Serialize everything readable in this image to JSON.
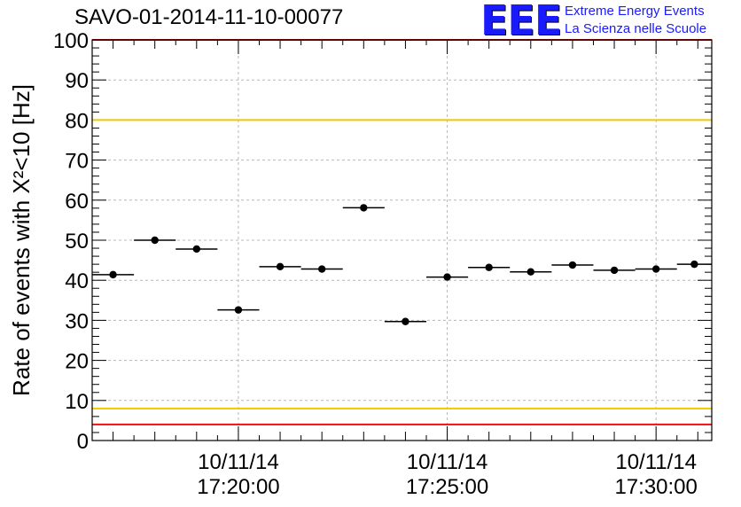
{
  "header": {
    "title": "SAVO-01-2014-11-10-00077",
    "logo_mark": "EEE",
    "logo_line1": "Extreme Energy Events",
    "logo_line2": "La Scienza nelle Scuole"
  },
  "chart_data": {
    "type": "scatter",
    "title": "SAVO-01-2014-11-10-00077",
    "ylabel": "Rate of events with X²<10 [Hz]",
    "xlabel": "",
    "ylim": [
      0,
      100
    ],
    "yticks": [
      0,
      10,
      20,
      30,
      40,
      50,
      60,
      70,
      80,
      90,
      100
    ],
    "x_unit": "minutes",
    "xlim": [
      "10/11/14 17:16:30",
      "10/11/14 17:31:20"
    ],
    "xticks": [
      {
        "at": "17:20:00",
        "label_date": "10/11/14",
        "label_time": "17:20:00"
      },
      {
        "at": "17:25:00",
        "label_date": "10/11/14",
        "label_time": "17:25:00"
      },
      {
        "at": "17:30:00",
        "label_date": "10/11/14",
        "label_time": "17:30:00"
      }
    ],
    "grid": true,
    "series": [
      {
        "points": [
          {
            "x_start": "17:16:30",
            "x_end": "17:17:30",
            "y": 41.4
          },
          {
            "x_start": "17:17:30",
            "x_end": "17:18:30",
            "y": 50.0
          },
          {
            "x_start": "17:18:30",
            "x_end": "17:19:30",
            "y": 47.8
          },
          {
            "x_start": "17:19:30",
            "x_end": "17:20:30",
            "y": 32.6
          },
          {
            "x_start": "17:20:30",
            "x_end": "17:21:30",
            "y": 43.4
          },
          {
            "x_start": "17:21:30",
            "x_end": "17:22:30",
            "y": 42.8
          },
          {
            "x_start": "17:22:30",
            "x_end": "17:23:30",
            "y": 58.1
          },
          {
            "x_start": "17:23:30",
            "x_end": "17:24:30",
            "y": 29.7
          },
          {
            "x_start": "17:24:30",
            "x_end": "17:25:30",
            "y": 40.8
          },
          {
            "x_start": "17:25:30",
            "x_end": "17:26:30",
            "y": 43.2
          },
          {
            "x_start": "17:26:30",
            "x_end": "17:27:30",
            "y": 42.1
          },
          {
            "x_start": "17:27:30",
            "x_end": "17:28:30",
            "y": 43.8
          },
          {
            "x_start": "17:28:30",
            "x_end": "17:29:30",
            "y": 42.5
          },
          {
            "x_start": "17:29:30",
            "x_end": "17:30:30",
            "y": 42.8
          },
          {
            "x_start": "17:30:30",
            "x_end": "17:31:20",
            "y": 44.0
          }
        ]
      }
    ],
    "reference_lines": [
      {
        "y": 80,
        "color": "#f0c800"
      },
      {
        "y": 8,
        "color": "#f0c800"
      },
      {
        "y": 100,
        "color": "#ee1111"
      },
      {
        "y": 4,
        "color": "#ee1111"
      }
    ],
    "colors": {
      "marker": "#000000",
      "grid": "#b8b8b8",
      "axis": "#000000"
    }
  }
}
